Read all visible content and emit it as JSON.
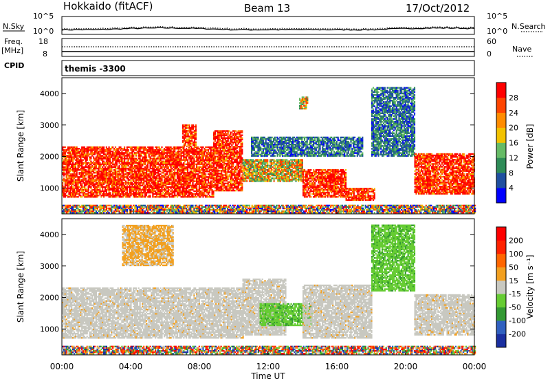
{
  "header": {
    "station": "Hokkaido (fitACF)",
    "beam": "Beam 13",
    "date": "17/Oct/2012"
  },
  "strips": {
    "nsky_label": "N.Sky",
    "nsky_ticks": [
      "10^5",
      "10^0"
    ],
    "nsearch_label": "N.Search",
    "nsearch_ticks": [
      "10^5",
      "10^0"
    ],
    "freq_label_1": "Freq.",
    "freq_label_2": "[MHz]",
    "freq_ticks": [
      "18",
      "8"
    ],
    "nave_label": "Nave",
    "nave_ticks": [
      "60",
      "0"
    ],
    "cpid_label": "CPID",
    "cpid_value": "themis -3300"
  },
  "chart_data": [
    {
      "type": "heatmap",
      "parameter": "power",
      "ylabel": "Slant Range [km]",
      "ylim": [
        180,
        4500
      ],
      "yticks": [
        "1000",
        "2000",
        "3000",
        "4000"
      ],
      "xlim_hours": [
        0,
        24
      ],
      "colorbar": {
        "label": "Power [dB]",
        "ticks": [
          "4",
          "8",
          "12",
          "16",
          "20",
          "24",
          "28"
        ],
        "colors": [
          "#0000ff",
          "#1f4fa0",
          "#2e8b57",
          "#66bb66",
          "#f2c200",
          "#ff8c00",
          "#ff4500",
          "#ff0000"
        ]
      },
      "regions": [
        {
          "t": [
            0.0,
            8.8
          ],
          "r": [
            700,
            2300
          ],
          "level": "high"
        },
        {
          "t": [
            8.8,
            10.5
          ],
          "r": [
            900,
            2800
          ],
          "level": "high"
        },
        {
          "t": [
            7.0,
            7.8
          ],
          "r": [
            2300,
            3000
          ],
          "level": "high"
        },
        {
          "t": [
            10.5,
            14.0
          ],
          "r": [
            1200,
            1900
          ],
          "level": "medium"
        },
        {
          "t": [
            14.0,
            16.5
          ],
          "r": [
            700,
            1600
          ],
          "level": "high"
        },
        {
          "t": [
            16.5,
            18.2
          ],
          "r": [
            600,
            1000
          ],
          "level": "high"
        },
        {
          "t": [
            11.0,
            17.5
          ],
          "r": [
            2000,
            2600
          ],
          "level": "low"
        },
        {
          "t": [
            13.8,
            14.3
          ],
          "r": [
            3500,
            3900
          ],
          "level": "medium"
        },
        {
          "t": [
            18.0,
            20.5
          ],
          "r": [
            2000,
            4200
          ],
          "level": "low"
        },
        {
          "t": [
            20.5,
            24.0
          ],
          "r": [
            800,
            2100
          ],
          "level": "high"
        },
        {
          "t": [
            0.0,
            24.0
          ],
          "r": [
            200,
            450
          ],
          "level": "mixed"
        }
      ]
    },
    {
      "type": "heatmap",
      "parameter": "velocity",
      "ylabel": "Slant Range [km]",
      "ylim": [
        180,
        4500
      ],
      "yticks": [
        "1000",
        "2000",
        "3000",
        "4000"
      ],
      "xlim_hours": [
        0,
        24
      ],
      "xticks": [
        "00:00",
        "04:00",
        "08:00",
        "12:00",
        "16:00",
        "20:00",
        "00:00"
      ],
      "xlabel": "Time UT",
      "colorbar": {
        "label": "Velocity [m s⁻¹]",
        "ticks": [
          "200",
          "100",
          "50",
          "15",
          "-15",
          "-50",
          "-100",
          "-200"
        ],
        "colors": [
          "#1a2fa0",
          "#3060c0",
          "#339933",
          "#66cc33",
          "#c8c8c0",
          "#f2a020",
          "#ff6600",
          "#ff2200",
          "#ff0000"
        ]
      },
      "regions": [
        {
          "t": [
            0.0,
            10.5
          ],
          "r": [
            700,
            2300
          ],
          "v": "ground"
        },
        {
          "t": [
            10.5,
            13.0
          ],
          "r": [
            800,
            2600
          ],
          "v": "ground"
        },
        {
          "t": [
            11.5,
            14.5
          ],
          "r": [
            1100,
            1800
          ],
          "v": "positive"
        },
        {
          "t": [
            14.0,
            18.0
          ],
          "r": [
            700,
            2400
          ],
          "v": "ground"
        },
        {
          "t": [
            18.0,
            20.5
          ],
          "r": [
            2200,
            4300
          ],
          "v": "positive"
        },
        {
          "t": [
            20.5,
            24.0
          ],
          "r": [
            800,
            2100
          ],
          "v": "ground"
        },
        {
          "t": [
            3.5,
            6.5
          ],
          "r": [
            3000,
            4300
          ],
          "v": "negative"
        },
        {
          "t": [
            0.0,
            24.0
          ],
          "r": [
            200,
            450
          ],
          "v": "mixed"
        }
      ]
    }
  ]
}
